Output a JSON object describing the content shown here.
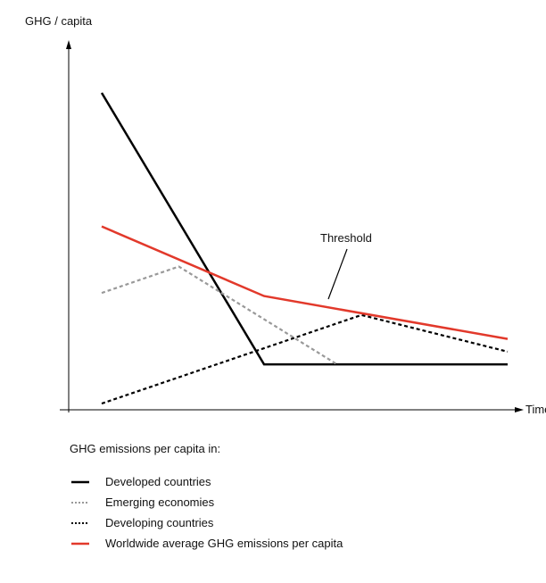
{
  "chart_data": {
    "type": "line",
    "title": "",
    "ylabel": "GHG / capita",
    "xlabel": "Time",
    "grid": false,
    "x_range": [
      0,
      100
    ],
    "ylim": [
      0,
      100
    ],
    "annotations": [
      {
        "text": "Threshold"
      }
    ],
    "series": [
      {
        "name": "Developed countries",
        "color": "#000000",
        "dash": "solid",
        "x": [
          0,
          40,
          100
        ],
        "y": [
          100,
          12.6,
          12.6
        ]
      },
      {
        "name": "Emerging economies",
        "color": "#999999",
        "dash": "dotted",
        "x": [
          0,
          19,
          58
        ],
        "y": [
          35.6,
          44.1,
          12.6
        ]
      },
      {
        "name": "Developing countries",
        "color": "#000000",
        "dash": "dotted",
        "x": [
          0,
          64,
          100
        ],
        "y": [
          0,
          28.5,
          16.7
        ]
      },
      {
        "name": "Worldwide average GHG emissions per capita",
        "color": "#e2392b",
        "dash": "solid",
        "x": [
          0,
          40,
          100
        ],
        "y": [
          57,
          34.6,
          20.8
        ]
      }
    ],
    "legend": {
      "title": "GHG emissions per capita in:",
      "placement": "bottom"
    }
  }
}
